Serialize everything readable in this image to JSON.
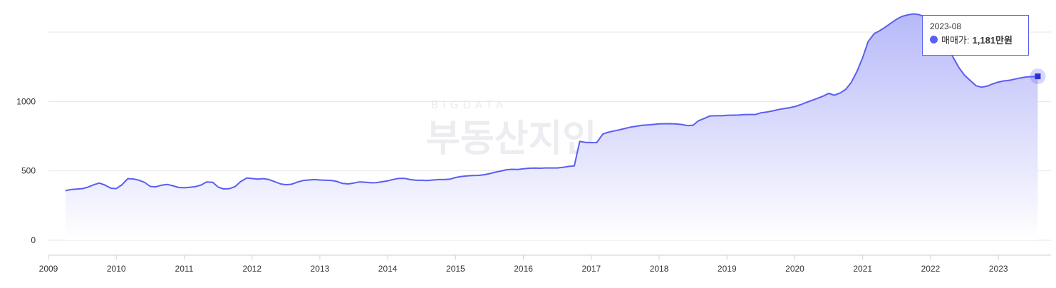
{
  "colors": {
    "line": "#5b5ef0",
    "area_top": "#b7b9f9",
    "area_bottom": "#ffffff",
    "grid": "#e6e6e6",
    "axis": "#c8cde6",
    "watermark": "#ececf1"
  },
  "watermark": {
    "small": "BIGDATA",
    "main": "부동산지인"
  },
  "tooltip": {
    "date": "2023-08",
    "series": "매매가:",
    "value": "1,181만원"
  },
  "chart_data": {
    "type": "area",
    "x_unit": "year (decimal)",
    "ylim": [
      0,
      1500
    ],
    "y_ticks": [
      0,
      500,
      1000
    ],
    "y_tick_labels": [
      "0",
      "500",
      "1000"
    ],
    "x_ticks": [
      2009,
      2010,
      2011,
      2012,
      2013,
      2014,
      2015,
      2016,
      2017,
      2018,
      2019,
      2020,
      2021,
      2022,
      2023
    ],
    "x_tick_labels": [
      "2009",
      "2010",
      "2011",
      "2012",
      "2013",
      "2014",
      "2015",
      "2016",
      "2017",
      "2018",
      "2019",
      "2020",
      "2021",
      "2022",
      "2023"
    ],
    "xlim": [
      2009,
      2023.67
    ],
    "grid": "horizontal",
    "highlight": {
      "x": 2023.58,
      "y": 1181,
      "label": "2023-08"
    },
    "series": [
      {
        "name": "매매가",
        "points": [
          [
            2009.25,
            357
          ],
          [
            2009.33,
            365
          ],
          [
            2009.5,
            372
          ],
          [
            2009.58,
            382
          ],
          [
            2009.67,
            400
          ],
          [
            2009.75,
            412
          ],
          [
            2009.83,
            398
          ],
          [
            2009.92,
            375
          ],
          [
            2010.0,
            372
          ],
          [
            2010.08,
            398
          ],
          [
            2010.17,
            444
          ],
          [
            2010.25,
            442
          ],
          [
            2010.33,
            433
          ],
          [
            2010.42,
            416
          ],
          [
            2010.5,
            388
          ],
          [
            2010.58,
            385
          ],
          [
            2010.67,
            397
          ],
          [
            2010.75,
            402
          ],
          [
            2010.83,
            393
          ],
          [
            2010.92,
            380
          ],
          [
            2011.0,
            378
          ],
          [
            2011.08,
            381
          ],
          [
            2011.17,
            387
          ],
          [
            2011.25,
            398
          ],
          [
            2011.33,
            420
          ],
          [
            2011.42,
            417
          ],
          [
            2011.5,
            383
          ],
          [
            2011.58,
            370
          ],
          [
            2011.67,
            372
          ],
          [
            2011.75,
            387
          ],
          [
            2011.83,
            422
          ],
          [
            2011.92,
            448
          ],
          [
            2012.0,
            445
          ],
          [
            2012.08,
            440
          ],
          [
            2012.17,
            444
          ],
          [
            2012.25,
            437
          ],
          [
            2012.33,
            423
          ],
          [
            2012.42,
            406
          ],
          [
            2012.5,
            400
          ],
          [
            2012.58,
            403
          ],
          [
            2012.67,
            419
          ],
          [
            2012.75,
            430
          ],
          [
            2012.83,
            434
          ],
          [
            2012.92,
            437
          ],
          [
            2013.0,
            434
          ],
          [
            2013.17,
            431
          ],
          [
            2013.25,
            424
          ],
          [
            2013.33,
            410
          ],
          [
            2013.42,
            406
          ],
          [
            2013.5,
            412
          ],
          [
            2013.58,
            420
          ],
          [
            2013.67,
            418
          ],
          [
            2013.75,
            414
          ],
          [
            2013.83,
            415
          ],
          [
            2013.92,
            422
          ],
          [
            2014.0,
            428
          ],
          [
            2014.08,
            438
          ],
          [
            2014.17,
            446
          ],
          [
            2014.25,
            446
          ],
          [
            2014.33,
            437
          ],
          [
            2014.42,
            432
          ],
          [
            2014.5,
            432
          ],
          [
            2014.58,
            430
          ],
          [
            2014.67,
            434
          ],
          [
            2014.75,
            437
          ],
          [
            2014.83,
            437
          ],
          [
            2014.92,
            441
          ],
          [
            2015.0,
            452
          ],
          [
            2015.08,
            459
          ],
          [
            2015.17,
            464
          ],
          [
            2015.25,
            466
          ],
          [
            2015.33,
            467
          ],
          [
            2015.42,
            472
          ],
          [
            2015.5,
            480
          ],
          [
            2015.58,
            490
          ],
          [
            2015.67,
            499
          ],
          [
            2015.75,
            508
          ],
          [
            2015.83,
            511
          ],
          [
            2015.92,
            510
          ],
          [
            2016.0,
            515
          ],
          [
            2016.08,
            519
          ],
          [
            2016.17,
            520
          ],
          [
            2016.25,
            519
          ],
          [
            2016.33,
            521
          ],
          [
            2016.5,
            521
          ],
          [
            2016.58,
            525
          ],
          [
            2016.67,
            532
          ],
          [
            2016.75,
            536
          ],
          [
            2016.83,
            712
          ],
          [
            2016.92,
            705
          ],
          [
            2017.0,
            703
          ],
          [
            2017.08,
            704
          ],
          [
            2017.17,
            765
          ],
          [
            2017.25,
            778
          ],
          [
            2017.33,
            787
          ],
          [
            2017.42,
            796
          ],
          [
            2017.5,
            806
          ],
          [
            2017.58,
            815
          ],
          [
            2017.67,
            822
          ],
          [
            2017.75,
            828
          ],
          [
            2017.83,
            831
          ],
          [
            2017.92,
            835
          ],
          [
            2018.0,
            839
          ],
          [
            2018.17,
            840
          ],
          [
            2018.25,
            838
          ],
          [
            2018.33,
            834
          ],
          [
            2018.42,
            826
          ],
          [
            2018.5,
            829
          ],
          [
            2018.58,
            861
          ],
          [
            2018.67,
            879
          ],
          [
            2018.75,
            896
          ],
          [
            2018.83,
            897
          ],
          [
            2018.92,
            897
          ],
          [
            2019.0,
            900
          ],
          [
            2019.17,
            902
          ],
          [
            2019.25,
            905
          ],
          [
            2019.33,
            906
          ],
          [
            2019.42,
            906
          ],
          [
            2019.5,
            918
          ],
          [
            2019.58,
            923
          ],
          [
            2019.67,
            932
          ],
          [
            2019.75,
            941
          ],
          [
            2019.83,
            948
          ],
          [
            2019.92,
            955
          ],
          [
            2020.0,
            963
          ],
          [
            2020.08,
            976
          ],
          [
            2020.17,
            993
          ],
          [
            2020.25,
            1008
          ],
          [
            2020.33,
            1022
          ],
          [
            2020.42,
            1039
          ],
          [
            2020.5,
            1058
          ],
          [
            2020.58,
            1045
          ],
          [
            2020.67,
            1062
          ],
          [
            2020.75,
            1087
          ],
          [
            2020.83,
            1137
          ],
          [
            2020.92,
            1221
          ],
          [
            2021.0,
            1316
          ],
          [
            2021.08,
            1432
          ],
          [
            2021.17,
            1489
          ],
          [
            2021.25,
            1510
          ],
          [
            2021.33,
            1535
          ],
          [
            2021.42,
            1566
          ],
          [
            2021.5,
            1593
          ],
          [
            2021.58,
            1613
          ],
          [
            2021.67,
            1625
          ],
          [
            2021.75,
            1631
          ],
          [
            2021.83,
            1626
          ],
          [
            2021.92,
            1608
          ],
          [
            2022.0,
            1579
          ],
          [
            2022.08,
            1531
          ],
          [
            2022.17,
            1474
          ],
          [
            2022.25,
            1401
          ],
          [
            2022.33,
            1320
          ],
          [
            2022.42,
            1242
          ],
          [
            2022.5,
            1189
          ],
          [
            2022.58,
            1153
          ],
          [
            2022.67,
            1113
          ],
          [
            2022.75,
            1103
          ],
          [
            2022.83,
            1110
          ],
          [
            2022.92,
            1127
          ],
          [
            2023.0,
            1140
          ],
          [
            2023.08,
            1148
          ],
          [
            2023.17,
            1153
          ],
          [
            2023.25,
            1162
          ],
          [
            2023.33,
            1170
          ],
          [
            2023.42,
            1177
          ],
          [
            2023.5,
            1179
          ],
          [
            2023.58,
            1181
          ]
        ]
      }
    ]
  }
}
